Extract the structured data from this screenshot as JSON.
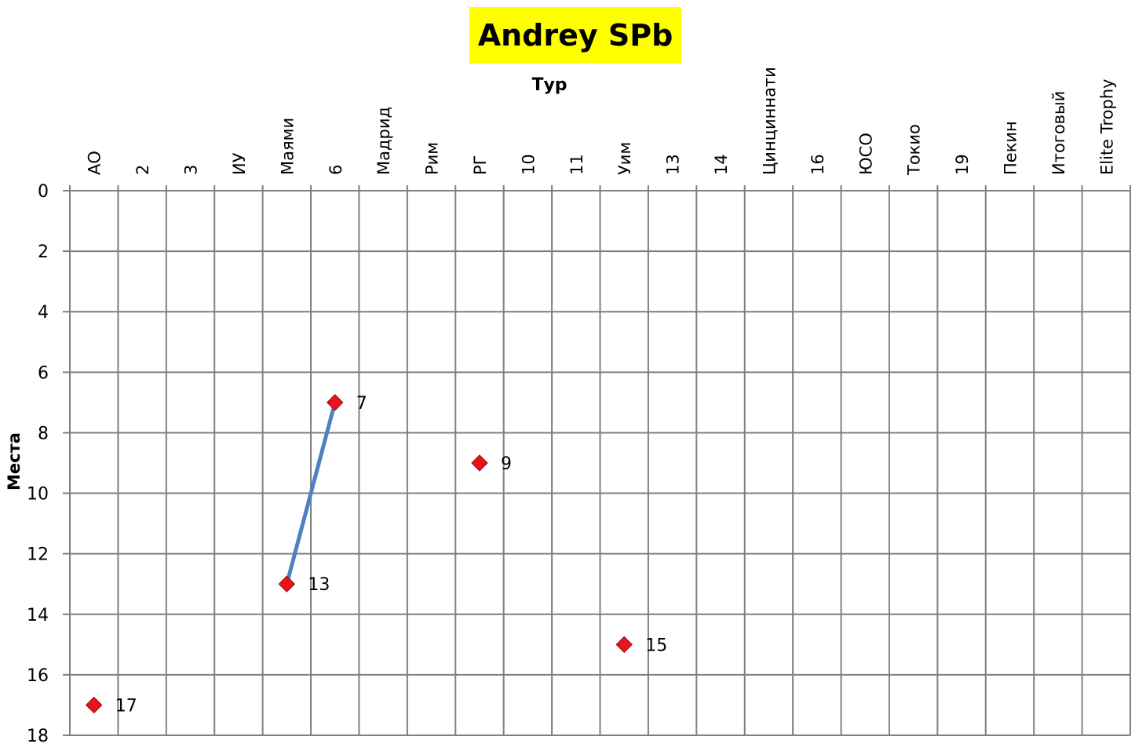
{
  "chart_data": {
    "type": "line",
    "title": "Andrey SPb",
    "xlabel": "Тур",
    "ylabel": "Места",
    "categories": [
      "АО",
      "2",
      "3",
      "ИУ",
      "Маями",
      "6",
      "Мадрид",
      "Рим",
      "РГ",
      "10",
      "11",
      "Уим",
      "13",
      "14",
      "Цинциннати",
      "16",
      "ЮСО",
      "Токио",
      "19",
      "Пекин",
      "Итоговый",
      "Elite Trophy"
    ],
    "series": [
      {
        "values": [
          17,
          null,
          null,
          null,
          13,
          7,
          null,
          null,
          9,
          null,
          null,
          15,
          null,
          null,
          null,
          null,
          null,
          null,
          null,
          null,
          null,
          null
        ],
        "show_data_labels": true
      }
    ],
    "ylim": [
      0,
      18
    ],
    "y_reversed": true,
    "y_ticks": [
      0,
      2,
      4,
      6,
      8,
      10,
      12,
      14,
      16,
      18
    ],
    "grid": true,
    "x_axis_position": "top",
    "colors": {
      "line": "#4f81bd",
      "marker": "#e8141b",
      "grid": "#7f7f7f",
      "title_background": "#ffff00"
    }
  }
}
